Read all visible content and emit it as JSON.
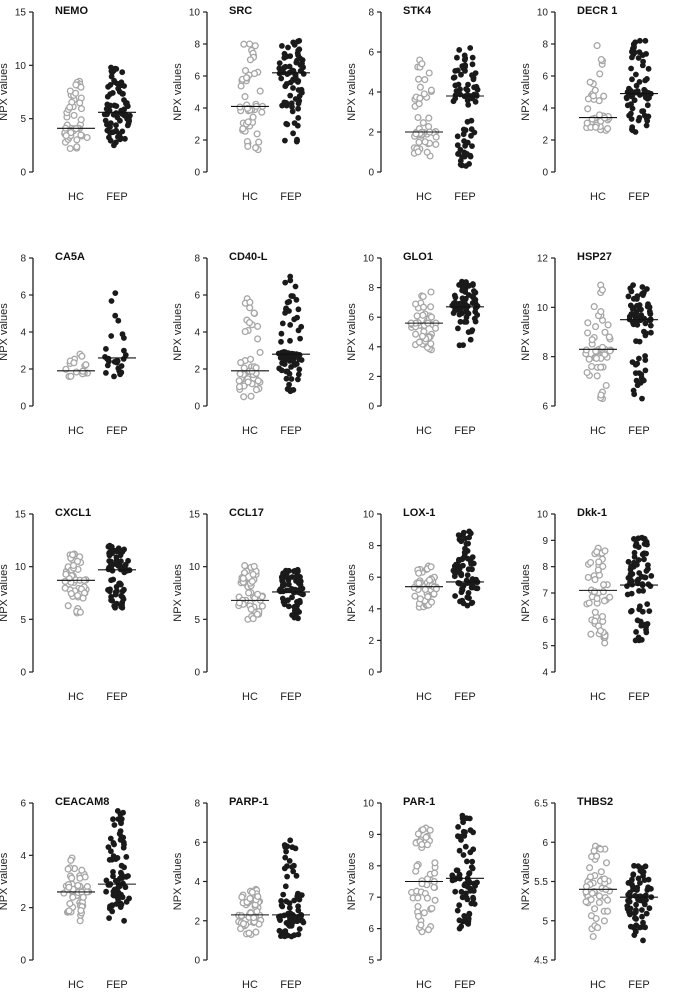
{
  "figure": {
    "y_axis_label": "NPX values",
    "group_labels": [
      "HC",
      "FEP"
    ],
    "group_colors": {
      "HC": "#a6a6a6",
      "FEP": "#1a1a1a"
    }
  },
  "chart_data": [
    {
      "type": "scatter",
      "title": "NEMO",
      "ylim": [
        0,
        15
      ],
      "yticks": [
        0,
        5,
        10,
        15
      ],
      "hc_median": 4.1,
      "fep_median": 5.6,
      "hc_range": [
        2.2,
        8.5
      ],
      "fep_range": [
        2.5,
        9.8
      ],
      "n_hc": 50,
      "n_fep": 75
    },
    {
      "type": "scatter",
      "title": "SRC",
      "ylim": [
        0,
        10
      ],
      "yticks": [
        0,
        2,
        4,
        6,
        8,
        10
      ],
      "hc_median": 4.1,
      "fep_median": 6.2,
      "hc_range": [
        1.4,
        8.0
      ],
      "fep_range": [
        1.9,
        8.2
      ],
      "n_hc": 50,
      "n_fep": 75
    },
    {
      "type": "scatter",
      "title": "STK4",
      "ylim": [
        0,
        8
      ],
      "yticks": [
        0,
        2,
        4,
        6,
        8
      ],
      "hc_median": 2.0,
      "fep_median": 3.8,
      "hc_range": [
        0.8,
        5.6
      ],
      "fep_range": [
        0.3,
        6.2
      ],
      "n_hc": 50,
      "n_fep": 75
    },
    {
      "type": "scatter",
      "title": "DECR 1",
      "ylim": [
        0,
        10
      ],
      "yticks": [
        0,
        2,
        4,
        6,
        8,
        10
      ],
      "hc_median": 3.4,
      "fep_median": 4.9,
      "hc_range": [
        2.6,
        7.9
      ],
      "fep_range": [
        2.5,
        8.2
      ],
      "n_hc": 40,
      "n_fep": 70
    },
    {
      "type": "scatter",
      "title": "CA5A",
      "ylim": [
        0,
        8
      ],
      "yticks": [
        0,
        2,
        4,
        6,
        8
      ],
      "hc_median": 1.9,
      "fep_median": 2.6,
      "hc_range": [
        1.6,
        2.8
      ],
      "fep_range": [
        1.6,
        6.1
      ],
      "n_hc": 16,
      "n_fep": 28
    },
    {
      "type": "scatter",
      "title": "CD40-L",
      "ylim": [
        0,
        8
      ],
      "yticks": [
        0,
        2,
        4,
        6,
        8
      ],
      "hc_median": 1.9,
      "fep_median": 2.8,
      "hc_range": [
        0.5,
        5.8
      ],
      "fep_range": [
        0.8,
        7.0
      ],
      "n_hc": 50,
      "n_fep": 75
    },
    {
      "type": "scatter",
      "title": "GLO1",
      "ylim": [
        0,
        10
      ],
      "yticks": [
        0,
        2,
        4,
        6,
        8,
        10
      ],
      "hc_median": 5.6,
      "fep_median": 6.7,
      "hc_range": [
        3.8,
        7.7
      ],
      "fep_range": [
        4.1,
        8.4
      ],
      "n_hc": 50,
      "n_fep": 75
    },
    {
      "type": "scatter",
      "title": "HSP27",
      "ylim": [
        6,
        12
      ],
      "yticks": [
        6,
        8,
        10,
        12
      ],
      "hc_median": 8.3,
      "fep_median": 9.5,
      "hc_range": [
        6.3,
        10.9
      ],
      "fep_range": [
        6.3,
        10.9
      ],
      "n_hc": 50,
      "n_fep": 75
    },
    {
      "type": "scatter",
      "title": "CXCL1",
      "ylim": [
        0,
        15
      ],
      "yticks": [
        0,
        5,
        10,
        15
      ],
      "hc_median": 8.7,
      "fep_median": 9.7,
      "hc_range": [
        5.6,
        11.2
      ],
      "fep_range": [
        6.1,
        12.0
      ],
      "n_hc": 50,
      "n_fep": 75
    },
    {
      "type": "scatter",
      "title": "CCL17",
      "ylim": [
        0,
        15
      ],
      "yticks": [
        0,
        5,
        10,
        15
      ],
      "hc_median": 6.8,
      "fep_median": 7.6,
      "hc_range": [
        5.0,
        10.1
      ],
      "fep_range": [
        5.1,
        9.7
      ],
      "n_hc": 50,
      "n_fep": 75
    },
    {
      "type": "scatter",
      "title": "LOX-1",
      "ylim": [
        0,
        10
      ],
      "yticks": [
        0,
        2,
        4,
        6,
        8,
        10
      ],
      "hc_median": 5.4,
      "fep_median": 5.7,
      "hc_range": [
        4.1,
        6.7
      ],
      "fep_range": [
        4.2,
        8.9
      ],
      "n_hc": 50,
      "n_fep": 75
    },
    {
      "type": "scatter",
      "title": "Dkk-1",
      "ylim": [
        4,
        10
      ],
      "yticks": [
        4,
        5,
        6,
        7,
        8,
        9,
        10
      ],
      "hc_median": 7.1,
      "fep_median": 7.3,
      "hc_range": [
        5.1,
        8.7
      ],
      "fep_range": [
        5.2,
        9.1
      ],
      "n_hc": 50,
      "n_fep": 75
    },
    {
      "type": "scatter",
      "title": "CEACAM8",
      "ylim": [
        0,
        6
      ],
      "yticks": [
        0,
        2,
        4,
        6
      ],
      "hc_median": 2.6,
      "fep_median": 2.9,
      "hc_range": [
        1.5,
        3.9
      ],
      "fep_range": [
        1.5,
        5.7
      ],
      "n_hc": 50,
      "n_fep": 75
    },
    {
      "type": "scatter",
      "title": "PARP-1",
      "ylim": [
        0,
        8
      ],
      "yticks": [
        0,
        2,
        4,
        6,
        8
      ],
      "hc_median": 2.3,
      "fep_median": 2.3,
      "hc_range": [
        1.3,
        3.6
      ],
      "fep_range": [
        1.2,
        6.1
      ],
      "n_hc": 50,
      "n_fep": 75
    },
    {
      "type": "scatter",
      "title": "PAR-1",
      "ylim": [
        5,
        10
      ],
      "yticks": [
        5,
        6,
        7,
        8,
        9,
        10
      ],
      "hc_median": 7.5,
      "fep_median": 7.6,
      "hc_range": [
        5.9,
        9.2
      ],
      "fep_range": [
        6.0,
        9.6
      ],
      "n_hc": 50,
      "n_fep": 75
    },
    {
      "type": "scatter",
      "title": "THBS2",
      "ylim": [
        4.5,
        6.5
      ],
      "yticks": [
        4.5,
        5.0,
        5.5,
        6.0,
        6.5
      ],
      "hc_median": 5.4,
      "fep_median": 5.3,
      "hc_range": [
        4.8,
        5.95
      ],
      "fep_range": [
        4.75,
        5.7
      ],
      "n_hc": 50,
      "n_fep": 75
    }
  ]
}
